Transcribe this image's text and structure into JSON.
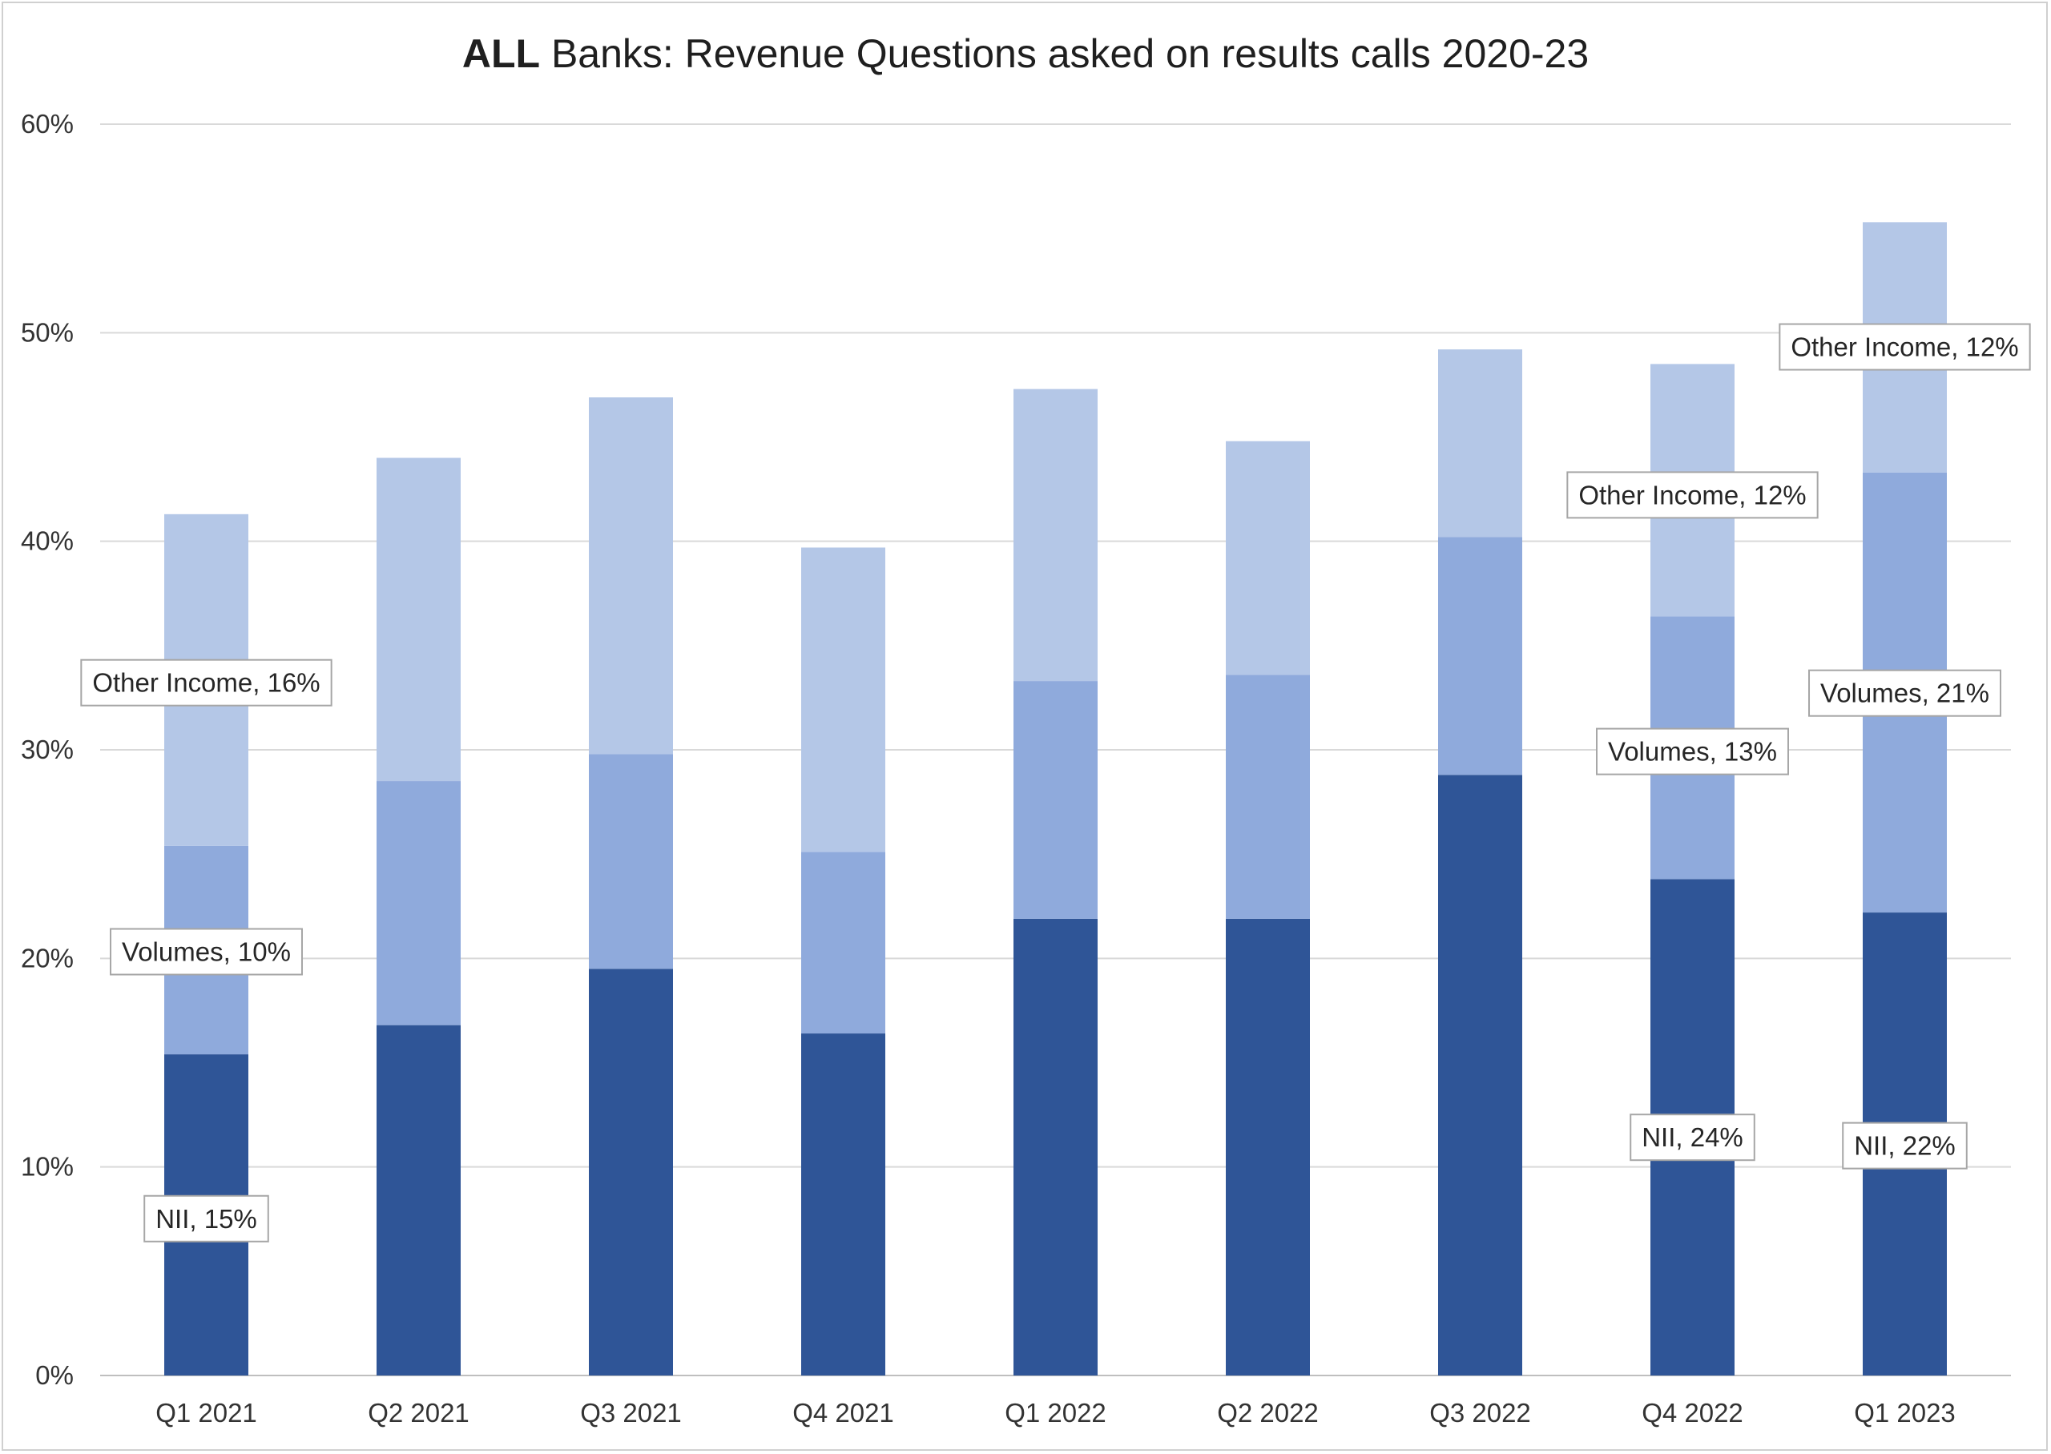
{
  "chart_data": {
    "type": "bar",
    "stacked": true,
    "title_bold": "ALL",
    "title_rest": " Banks: Revenue Questions asked on results calls 2020-23",
    "categories": [
      "Q1 2021",
      "Q2 2021",
      "Q3 2021",
      "Q4 2021",
      "Q1 2022",
      "Q2 2022",
      "Q3 2022",
      "Q4 2022",
      "Q1 2023"
    ],
    "series": [
      {
        "name": "NII",
        "color": "#2f5597",
        "values": [
          15.4,
          16.8,
          19.5,
          16.4,
          21.9,
          21.9,
          28.8,
          23.8,
          22.2
        ]
      },
      {
        "name": "Volumes",
        "color": "#8faadc",
        "values": [
          10.0,
          11.7,
          10.3,
          8.7,
          11.4,
          11.7,
          11.4,
          12.6,
          21.1
        ]
      },
      {
        "name": "Other Income",
        "color": "#b4c7e7",
        "values": [
          15.9,
          15.5,
          17.1,
          14.6,
          14.0,
          11.2,
          9.0,
          12.1,
          12.0
        ]
      }
    ],
    "ylim": [
      0,
      60
    ],
    "yticks": [
      0,
      10,
      20,
      30,
      40,
      50,
      60
    ],
    "ytick_labels": [
      "0%",
      "10%",
      "20%",
      "30%",
      "40%",
      "50%",
      "60%"
    ],
    "grid": true,
    "legend": "none",
    "data_labels": [
      {
        "category": 0,
        "series": 2,
        "text": "Other Income, 16%"
      },
      {
        "category": 0,
        "series": 1,
        "text": "Volumes, 10%"
      },
      {
        "category": 0,
        "series": 0,
        "text": "NII, 15%"
      },
      {
        "category": 7,
        "series": 2,
        "text": "Other Income, 12%"
      },
      {
        "category": 7,
        "series": 1,
        "text": "Volumes, 13%"
      },
      {
        "category": 7,
        "series": 0,
        "text": "NII, 24%"
      },
      {
        "category": 8,
        "series": 2,
        "text": "Other Income, 12%"
      },
      {
        "category": 8,
        "series": 1,
        "text": "Volumes, 21%"
      },
      {
        "category": 8,
        "series": 0,
        "text": "NII, 22%"
      }
    ]
  }
}
